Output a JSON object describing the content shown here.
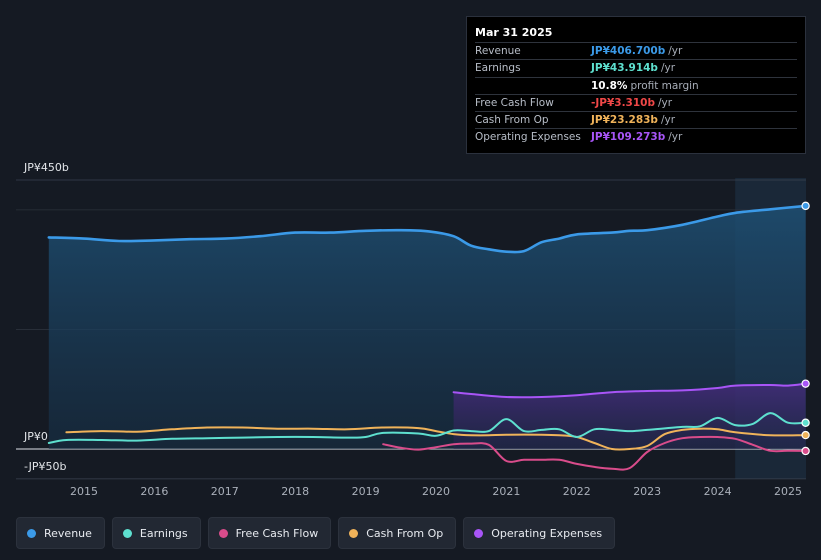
{
  "tooltip": {
    "date": "Mar 31 2025",
    "rows": [
      {
        "label": "Revenue",
        "value": "JP¥406.700b",
        "unit": "/yr",
        "color": "#3b9ae8"
      },
      {
        "label": "Earnings",
        "value": "JP¥43.914b",
        "unit": "/yr",
        "color": "#5ee0cf"
      },
      {
        "label": "",
        "value": "10.8%",
        "unit": "profit margin",
        "color": "#ffffff"
      },
      {
        "label": "Free Cash Flow",
        "value": "-JP¥3.310b",
        "unit": "/yr",
        "color": "#f04848"
      },
      {
        "label": "Cash From Op",
        "value": "JP¥23.283b",
        "unit": "/yr",
        "color": "#f0b35a"
      },
      {
        "label": "Operating Expenses",
        "value": "JP¥109.273b",
        "unit": "/yr",
        "color": "#a855f7"
      }
    ]
  },
  "legend": [
    {
      "label": "Revenue",
      "color": "#3b9ae8"
    },
    {
      "label": "Earnings",
      "color": "#5ee0cf"
    },
    {
      "label": "Free Cash Flow",
      "color": "#d94c8b"
    },
    {
      "label": "Cash From Op",
      "color": "#f0b35a"
    },
    {
      "label": "Operating Expenses",
      "color": "#a855f7"
    }
  ],
  "chart_data": {
    "type": "line",
    "title": "",
    "ylim": [
      -50,
      450
    ],
    "y_tick_labels": [
      "JP¥450b",
      "JP¥0",
      "-JP¥50b"
    ],
    "x_tick_labels": [
      "2015",
      "2016",
      "2017",
      "2018",
      "2019",
      "2020",
      "2021",
      "2022",
      "2023",
      "2024",
      "2025"
    ],
    "highlight_range": [
      2024.25,
      2025.25
    ],
    "series": [
      {
        "name": "Revenue",
        "color": "#3b9ae8",
        "x": [
          2014.5,
          2015.0,
          2015.5,
          2016.0,
          2016.5,
          2017.0,
          2017.5,
          2018.0,
          2018.5,
          2019.0,
          2019.5,
          2019.9,
          2020.25,
          2020.5,
          2020.75,
          2021.0,
          2021.25,
          2021.5,
          2021.75,
          2022.0,
          2022.5,
          2022.75,
          2023.0,
          2023.5,
          2024.0,
          2024.25,
          2024.75,
          2025.25
        ],
        "values": [
          354,
          352,
          348,
          349,
          351,
          352,
          356,
          362,
          362,
          365,
          366,
          364,
          356,
          340,
          334,
          330,
          331,
          346,
          352,
          359,
          362,
          365,
          366,
          375,
          389,
          395,
          401,
          406.7
        ]
      },
      {
        "name": "Earnings",
        "color": "#5ee0cf",
        "x": [
          2014.5,
          2014.75,
          2015.25,
          2015.75,
          2016.25,
          2016.75,
          2017.25,
          2017.75,
          2018.25,
          2018.75,
          2019.0,
          2019.25,
          2019.75,
          2020.0,
          2020.25,
          2020.5,
          2020.75,
          2021.0,
          2021.25,
          2021.5,
          2021.75,
          2022.0,
          2022.25,
          2022.5,
          2022.75,
          2023.0,
          2023.5,
          2023.75,
          2024.0,
          2024.25,
          2024.5,
          2024.75,
          2025.0,
          2025.25
        ],
        "values": [
          10,
          15,
          15,
          14,
          17,
          18,
          19,
          20,
          20,
          19,
          20,
          27,
          26,
          22,
          31,
          30,
          30,
          50,
          30,
          32,
          33,
          20,
          33,
          32,
          30,
          32,
          37,
          38,
          52,
          40,
          42,
          60,
          44,
          43.9
        ]
      },
      {
        "name": "Free Cash Flow",
        "color": "#d94c8b",
        "x": [
          2019.25,
          2019.5,
          2019.75,
          2020.0,
          2020.25,
          2020.5,
          2020.75,
          2021.0,
          2021.25,
          2021.5,
          2021.75,
          2022.0,
          2022.25,
          2022.5,
          2022.75,
          2023.0,
          2023.25,
          2023.5,
          2023.75,
          2024.0,
          2024.25,
          2024.5,
          2024.75,
          2025.0,
          2025.25
        ],
        "values": [
          8,
          2,
          -1,
          3,
          8,
          9,
          7,
          -20,
          -18,
          -18,
          -18,
          -25,
          -30,
          -33,
          -32,
          -5,
          10,
          18,
          20,
          20,
          17,
          7,
          -3,
          -3,
          -3.3
        ]
      },
      {
        "name": "Cash From Op",
        "color": "#f0b35a",
        "x": [
          2014.75,
          2015.25,
          2015.75,
          2016.25,
          2016.75,
          2017.25,
          2017.75,
          2018.25,
          2018.75,
          2019.25,
          2019.75,
          2020.0,
          2020.25,
          2020.5,
          2020.75,
          2021.0,
          2021.5,
          2021.75,
          2022.0,
          2022.25,
          2022.5,
          2022.75,
          2023.0,
          2023.25,
          2023.5,
          2023.75,
          2024.0,
          2024.25,
          2024.75,
          2025.25
        ],
        "values": [
          28,
          30,
          29,
          33,
          36,
          36,
          34,
          34,
          33,
          36,
          35,
          30,
          25,
          23,
          23,
          24,
          24,
          23,
          20,
          10,
          0,
          0,
          5,
          25,
          32,
          34,
          33,
          28,
          23,
          23.3
        ]
      },
      {
        "name": "Operating Expenses",
        "color": "#a855f7",
        "x": [
          2020.25,
          2020.5,
          2021.0,
          2021.5,
          2022.0,
          2022.5,
          2023.0,
          2023.5,
          2024.0,
          2024.25,
          2024.75,
          2025.0,
          2025.25
        ],
        "values": [
          95,
          92,
          87,
          87,
          90,
          95,
          97,
          98,
          102,
          106,
          107,
          106,
          109.3
        ]
      }
    ]
  }
}
